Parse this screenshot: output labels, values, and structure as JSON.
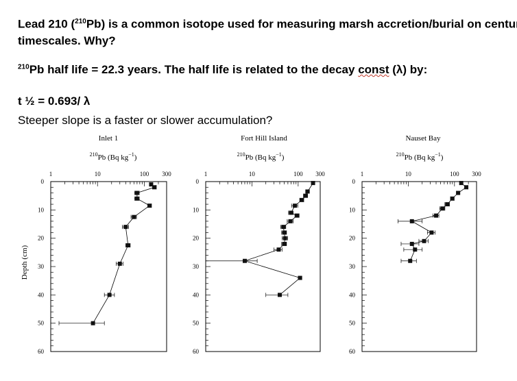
{
  "slide": {
    "title_part1": "Lead 210 (",
    "title_sup": "210",
    "title_part2": "Pb) is a common isotope used for measuring marsh accretion/burial on century",
    "title_line2": "timescales.  Why?",
    "halflife_sup": "210",
    "halflife_text": "Pb half life = 22.3 years.  The half life is related to the decay ",
    "halflife_const": "const",
    "halflife_tail": " (λ) by:",
    "formula": "t ½ = 0.693/ λ",
    "question": "Steeper slope is a faster or slower accumulation?"
  },
  "colors": {
    "line": "#000000",
    "marker": "#111111",
    "squiggle": "#c0392b"
  },
  "chart_data": [
    {
      "type": "line",
      "title": "Inlet 1",
      "xlabel_sup": "210",
      "xlabel": "Pb (Bq kg",
      "xlabel_unit_sup": "−1",
      "xlabel_close": ")",
      "ylabel": "Depth (cm)",
      "xscale": "log",
      "xlim": [
        1,
        300
      ],
      "ylim": [
        0,
        60
      ],
      "xticks": [
        1,
        10,
        100,
        300
      ],
      "yticks": [
        0,
        10,
        20,
        30,
        40,
        50,
        60
      ],
      "series": [
        {
          "values": [
            {
              "x": 140,
              "y": 1,
              "xerr": [
                130,
                150
              ]
            },
            {
              "x": 165,
              "y": 2,
              "xerr": [
                150,
                180
              ]
            },
            {
              "x": 70,
              "y": 4,
              "xerr": [
                62,
                78
              ]
            },
            {
              "x": 70,
              "y": 6,
              "xerr": [
                62,
                78
              ]
            },
            {
              "x": 130,
              "y": 8.5,
              "xerr": [
                118,
                142
              ]
            },
            {
              "x": 60,
              "y": 12.5,
              "xerr": [
                52,
                68
              ]
            },
            {
              "x": 40,
              "y": 16,
              "xerr": [
                34,
                46
              ]
            },
            {
              "x": 45,
              "y": 22.5,
              "xerr": [
                40,
                50
              ]
            },
            {
              "x": 30,
              "y": 29,
              "xerr": [
                25,
                35
              ]
            },
            {
              "x": 18,
              "y": 40,
              "xerr": [
                14,
                23
              ]
            },
            {
              "x": 8,
              "y": 50,
              "xerr": [
                1.5,
                14
              ]
            }
          ]
        }
      ]
    },
    {
      "type": "line",
      "title": "Fort Hill Island",
      "xlabel_sup": "210",
      "xlabel": "Pb (Bq kg",
      "xlabel_unit_sup": "−1",
      "xlabel_close": ")",
      "xscale": "log",
      "xlim": [
        1,
        300
      ],
      "ylim": [
        0,
        60
      ],
      "xticks": [
        1,
        10,
        100,
        300
      ],
      "yticks": [
        0,
        10,
        20,
        30,
        40,
        50,
        60
      ],
      "series": [
        {
          "values": [
            {
              "x": 210,
              "y": 0.5,
              "xerr": [
                195,
                225
              ]
            },
            {
              "x": 160,
              "y": 3.5,
              "xerr": [
                145,
                175
              ]
            },
            {
              "x": 145,
              "y": 5,
              "xerr": [
                130,
                160
              ]
            },
            {
              "x": 120,
              "y": 6.5,
              "xerr": [
                108,
                132
              ]
            },
            {
              "x": 85,
              "y": 8.5,
              "xerr": [
                72,
                98
              ]
            },
            {
              "x": 70,
              "y": 11,
              "xerr": [
                62,
                78
              ]
            },
            {
              "x": 95,
              "y": 12,
              "xerr": [
                85,
                105
              ]
            },
            {
              "x": 68,
              "y": 14,
              "xerr": [
                58,
                78
              ]
            },
            {
              "x": 48,
              "y": 16,
              "xerr": [
                42,
                54
              ]
            },
            {
              "x": 50,
              "y": 18,
              "xerr": [
                44,
                56
              ]
            },
            {
              "x": 52,
              "y": 20,
              "xerr": [
                45,
                59
              ]
            },
            {
              "x": 50,
              "y": 22,
              "xerr": [
                44,
                56
              ]
            },
            {
              "x": 38,
              "y": 24,
              "xerr": [
                30,
                45
              ]
            },
            {
              "x": 7,
              "y": 28,
              "xerr": [
                1,
                13
              ]
            },
            {
              "x": 110,
              "y": 34,
              "xerr": [
                100,
                120
              ]
            },
            {
              "x": 40,
              "y": 40,
              "xerr": [
                20,
                60
              ]
            }
          ]
        }
      ]
    },
    {
      "type": "line",
      "title": "Nauset Bay",
      "xlabel_sup": "210",
      "xlabel": "Pb (Bq kg",
      "xlabel_unit_sup": "−1",
      "xlabel_close": ")",
      "xscale": "log",
      "xlim": [
        1,
        300
      ],
      "ylim": [
        0,
        60
      ],
      "xticks": [
        1,
        10,
        100,
        300
      ],
      "yticks": [
        0,
        10,
        20,
        30,
        40,
        50,
        60
      ],
      "series": [
        {
          "values": [
            {
              "x": 140,
              "y": 0.5,
              "xerr": [
                130,
                150
              ]
            },
            {
              "x": 180,
              "y": 2,
              "xerr": [
                165,
                195
              ]
            },
            {
              "x": 120,
              "y": 4,
              "xerr": [
                110,
                130
              ]
            },
            {
              "x": 90,
              "y": 6,
              "xerr": [
                82,
                98
              ]
            },
            {
              "x": 70,
              "y": 8,
              "xerr": [
                62,
                78
              ]
            },
            {
              "x": 55,
              "y": 9.5,
              "xerr": [
                48,
                62
              ]
            },
            {
              "x": 40,
              "y": 12,
              "xerr": [
                34,
                46
              ]
            },
            {
              "x": 12,
              "y": 14,
              "xerr": [
                6,
                20
              ]
            },
            {
              "x": 32,
              "y": 18,
              "xerr": [
                26,
                38
              ]
            },
            {
              "x": 22,
              "y": 21,
              "xerr": [
                17,
                27
              ]
            },
            {
              "x": 12,
              "y": 22,
              "xerr": [
                7,
                17
              ]
            },
            {
              "x": 14,
              "y": 24,
              "xerr": [
                8,
                20
              ]
            },
            {
              "x": 11,
              "y": 28,
              "xerr": [
                7,
                15
              ]
            }
          ]
        }
      ]
    }
  ]
}
